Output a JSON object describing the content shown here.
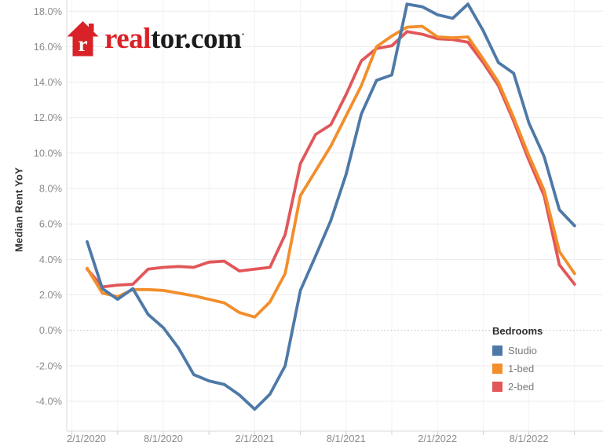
{
  "logo": {
    "house_letter": "r",
    "text_red": "real",
    "text_dark": "tor.com",
    "trademark_dot": "·",
    "brand_red": "#d92228"
  },
  "chart_data": {
    "type": "line",
    "title": "",
    "ylabel": "Median Rent YoY",
    "grid": "horizontal-light",
    "zero_line": "dotted",
    "ylim": [
      -5.7,
      18.6
    ],
    "legend": {
      "title": "Bedrooms",
      "position": "inside-right-bottom",
      "items": [
        "Studio",
        "1-bed",
        "2-bed"
      ]
    },
    "months": [
      "3/1/2020",
      "4/1/2020",
      "5/1/2020",
      "6/1/2020",
      "7/1/2020",
      "8/1/2020",
      "9/1/2020",
      "10/1/2020",
      "11/1/2020",
      "12/1/2020",
      "1/1/2021",
      "2/1/2021",
      "3/1/2021",
      "4/1/2021",
      "5/1/2021",
      "6/1/2021",
      "7/1/2021",
      "8/1/2021",
      "9/1/2021",
      "10/1/2021",
      "11/1/2021",
      "12/1/2021",
      "1/1/2022",
      "2/1/2022",
      "3/1/2022",
      "4/1/2022",
      "5/1/2022",
      "6/1/2022",
      "7/1/2022",
      "8/1/2022",
      "9/1/2022",
      "10/1/2022",
      "11/1/2022"
    ],
    "series": [
      {
        "name": "Studio",
        "color": "#4e79a7",
        "values": [
          5.0,
          2.35,
          1.75,
          2.35,
          0.9,
          0.15,
          -1.0,
          -2.5,
          -2.85,
          -3.05,
          -3.65,
          -4.45,
          -3.6,
          -2.0,
          2.25,
          4.2,
          6.2,
          8.8,
          12.2,
          14.1,
          14.4,
          18.4,
          18.25,
          17.8,
          17.6,
          18.4,
          16.9,
          15.1,
          14.5,
          11.7,
          9.8,
          6.8,
          5.9
        ]
      },
      {
        "name": "1-bed",
        "color": "#f28e2b",
        "values": [
          3.5,
          2.1,
          1.9,
          2.3,
          2.3,
          2.25,
          2.1,
          1.95,
          1.75,
          1.55,
          1.0,
          0.75,
          1.6,
          3.2,
          7.6,
          9.0,
          10.4,
          12.1,
          13.8,
          16.0,
          16.6,
          17.1,
          17.15,
          16.55,
          16.5,
          16.55,
          15.3,
          14.0,
          12.0,
          9.85,
          7.9,
          4.45,
          3.2
        ]
      },
      {
        "name": "2-bed",
        "color": "#e15759",
        "values": [
          3.45,
          2.45,
          2.55,
          2.6,
          3.45,
          3.55,
          3.6,
          3.55,
          3.85,
          3.9,
          3.35,
          3.45,
          3.55,
          5.4,
          9.4,
          11.05,
          11.6,
          13.3,
          15.2,
          15.9,
          16.05,
          16.85,
          16.7,
          16.45,
          16.4,
          16.25,
          15.1,
          13.8,
          11.8,
          9.6,
          7.6,
          3.7,
          2.6
        ]
      }
    ],
    "draw_order": [
      "2-bed",
      "1-bed",
      "Studio"
    ],
    "y_ticks": [
      {
        "value": 18,
        "label": "18.0%"
      },
      {
        "value": 16,
        "label": "16.0%"
      },
      {
        "value": 14,
        "label": "14.0%"
      },
      {
        "value": 12,
        "label": "12.0%"
      },
      {
        "value": 10,
        "label": "10.0%"
      },
      {
        "value": 8,
        "label": "8.0%"
      },
      {
        "value": 6,
        "label": "6.0%"
      },
      {
        "value": 4,
        "label": "4.0%"
      },
      {
        "value": 2,
        "label": "2.0%"
      },
      {
        "value": 0,
        "label": "0.0%"
      },
      {
        "value": -2,
        "label": "-2.0%"
      },
      {
        "value": -4,
        "label": "-4.0%"
      }
    ],
    "x_ticks": {
      "labeled": [
        {
          "month_offset": -1,
          "label": "2/1/2020"
        },
        {
          "month_offset": 5,
          "label": "8/1/2020"
        },
        {
          "month_offset": 11,
          "label": "2/1/2021"
        },
        {
          "month_offset": 17,
          "label": "8/1/2021"
        },
        {
          "month_offset": 23,
          "label": "2/1/2022"
        },
        {
          "month_offset": 29,
          "label": "8/1/2022"
        }
      ],
      "minor_month_offsets": [
        -1,
        2,
        5,
        8,
        11,
        14,
        17,
        20,
        23,
        26,
        29,
        32
      ]
    }
  }
}
